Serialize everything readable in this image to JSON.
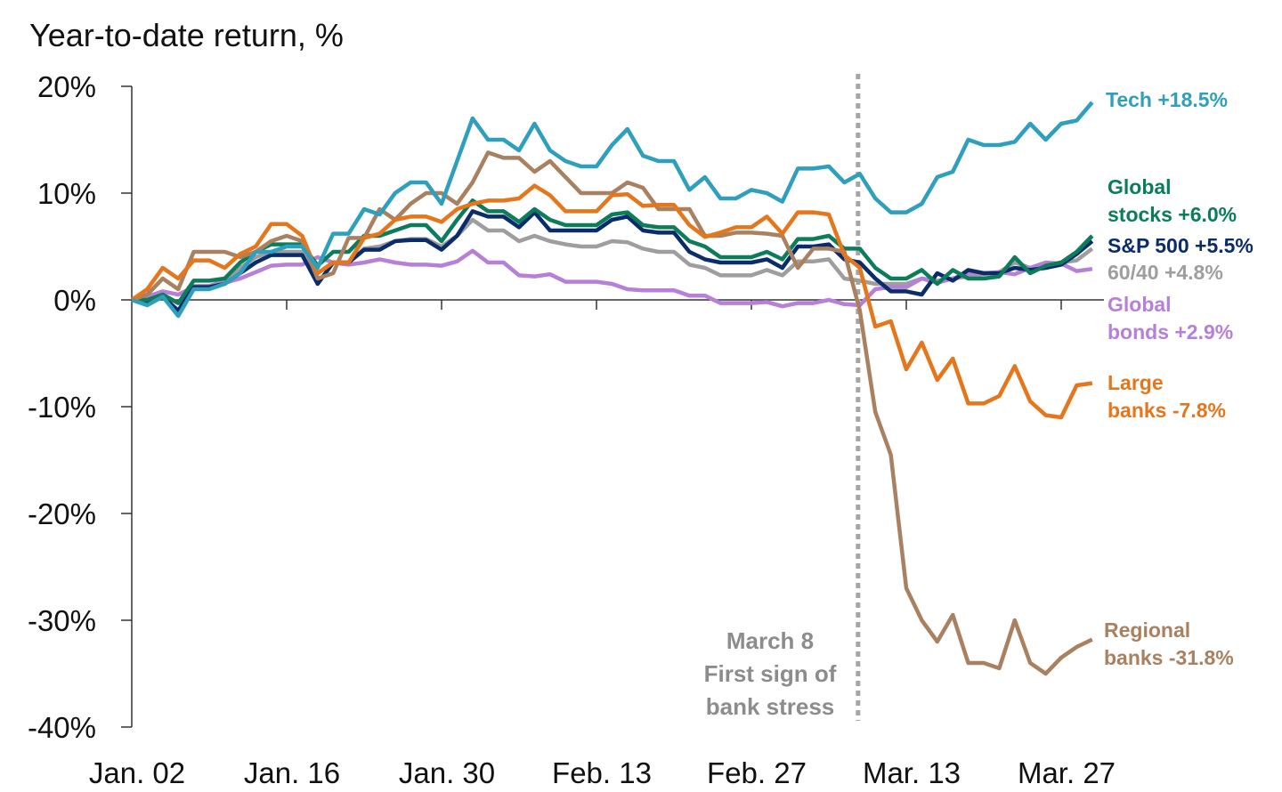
{
  "chart_data": {
    "type": "line",
    "title": "Year-to-date return, %",
    "xlabel": "",
    "ylabel": "",
    "ylim": [
      -40,
      20
    ],
    "y_ticks": [
      20,
      10,
      0,
      -10,
      -20,
      -30,
      -40
    ],
    "y_tick_labels": [
      "20%",
      "10%",
      "0%",
      "-10%",
      "-20%",
      "-30%",
      "-40%"
    ],
    "x_tick_labels": [
      "Jan. 02",
      "Jan. 16",
      "Jan. 30",
      "Feb. 13",
      "Feb. 27",
      "Mar. 13",
      "Mar. 27"
    ],
    "x_tick_dates": [
      "01-02",
      "01-16",
      "01-30",
      "02-13",
      "02-27",
      "03-13",
      "03-27"
    ],
    "grid": false,
    "legend": "direct labels at right end of lines",
    "x": [
      "01-02",
      "01-03",
      "01-04",
      "01-05",
      "01-06",
      "01-09",
      "01-10",
      "01-11",
      "01-12",
      "01-13",
      "01-16",
      "01-17",
      "01-18",
      "01-19",
      "01-20",
      "01-23",
      "01-24",
      "01-25",
      "01-26",
      "01-27",
      "01-30",
      "01-31",
      "02-01",
      "02-02",
      "02-03",
      "02-06",
      "02-07",
      "02-08",
      "02-09",
      "02-10",
      "02-13",
      "02-14",
      "02-15",
      "02-16",
      "02-17",
      "02-20",
      "02-21",
      "02-22",
      "02-23",
      "02-24",
      "02-27",
      "02-28",
      "03-01",
      "03-02",
      "03-03",
      "03-06",
      "03-07",
      "03-08",
      "03-09",
      "03-10",
      "03-13",
      "03-14",
      "03-15",
      "03-16",
      "03-17",
      "03-20",
      "03-21",
      "03-22",
      "03-23",
      "03-24",
      "03-27",
      "03-28",
      "03-29"
    ],
    "annotation": {
      "date": "03-08",
      "lines": [
        "March 8",
        "First sign of",
        "bank stress"
      ],
      "color": "#8c8c8c"
    },
    "series": [
      {
        "name": "60/40",
        "label": [
          "60/40 +4.8%"
        ],
        "color": "#9e9e9e",
        "values": [
          0,
          0,
          0.4,
          -0.3,
          1.3,
          1.3,
          1.8,
          3,
          4,
          4.5,
          4.5,
          4.5,
          2.5,
          3.5,
          3.5,
          4.8,
          5,
          5.5,
          5.7,
          5.7,
          5,
          6,
          7.5,
          6.5,
          6.5,
          5.5,
          6,
          5.5,
          5.2,
          5,
          5,
          5.5,
          5.4,
          4.8,
          4.5,
          4.5,
          3.3,
          3,
          2.3,
          2.3,
          2.3,
          2.8,
          2.3,
          3.6,
          3.6,
          3.8,
          2,
          1.8,
          1.5,
          1.5,
          1.5,
          2,
          1.8,
          2,
          2.2,
          2.4,
          2.6,
          3.5,
          3,
          3.2,
          3.5,
          3.7,
          4.8
        ]
      },
      {
        "name": "Global bonds",
        "label": [
          "Global",
          "bonds +2.9%"
        ],
        "color": "#b67fd8",
        "values": [
          0,
          0.3,
          0.8,
          0.5,
          1.2,
          1.3,
          1.6,
          2,
          2.6,
          3.2,
          3.3,
          3.3,
          4,
          3.5,
          3.3,
          3.5,
          3.8,
          3.5,
          3.3,
          3.3,
          3.2,
          3.6,
          4.6,
          3.5,
          3.5,
          2.3,
          2.2,
          2.4,
          1.7,
          1.7,
          1.7,
          1.5,
          1,
          0.9,
          0.9,
          0.9,
          0.4,
          0.4,
          -0.3,
          -0.3,
          -0.3,
          -0.2,
          -0.6,
          -0.3,
          -0.3,
          0,
          -0.4,
          -0.5,
          1,
          1.2,
          1.2,
          2,
          1.6,
          2,
          2.5,
          2.5,
          2.6,
          2.4,
          3,
          3.5,
          3.4,
          2.7,
          2.9
        ]
      },
      {
        "name": "S&P 500",
        "label": [
          "S&P 500 +5.5%"
        ],
        "color": "#0b2c6b",
        "values": [
          0,
          -0.3,
          0.3,
          -1,
          1.2,
          1.2,
          1.5,
          2.5,
          3.5,
          4.2,
          4.2,
          4.2,
          1.5,
          3.5,
          3.5,
          4.7,
          4.7,
          5.5,
          5.6,
          5.6,
          4.7,
          6,
          8.3,
          7.8,
          7.8,
          6.8,
          8.2,
          6.5,
          6.5,
          6.5,
          6.5,
          7.5,
          7.8,
          6.5,
          6.3,
          6.3,
          4.5,
          3.8,
          3.5,
          3.5,
          3.5,
          3.8,
          3,
          5,
          5,
          5.2,
          3.8,
          3.5,
          2,
          0.8,
          0.8,
          0.5,
          2.5,
          1.8,
          2.8,
          2.5,
          2.5,
          3,
          2.8,
          3,
          3.3,
          4.3,
          5.5
        ]
      },
      {
        "name": "Global stocks",
        "label": [
          "Global",
          "stocks +6.0%"
        ],
        "color": "#0b7d5a",
        "values": [
          0,
          0,
          0.5,
          -0.3,
          1.8,
          1.8,
          2,
          3.5,
          4.5,
          5.2,
          5.2,
          5.2,
          3.2,
          4.5,
          4.5,
          6,
          6,
          6.5,
          7,
          7,
          5.5,
          7.5,
          9.3,
          8.3,
          8.3,
          7.3,
          8.5,
          7.5,
          7,
          7,
          7,
          8,
          8.2,
          7,
          6.8,
          6.8,
          5.5,
          5,
          4,
          4,
          4,
          4.5,
          3.8,
          5.7,
          5.7,
          6,
          4.8,
          4.8,
          3,
          2,
          2,
          2.8,
          1.5,
          2.8,
          2,
          2,
          2.2,
          4,
          2.5,
          3.2,
          3.5,
          4.5,
          6
        ]
      },
      {
        "name": "Regional banks",
        "label": [
          "Regional",
          "banks -31.8%"
        ],
        "color": "#a98160",
        "values": [
          0,
          0.5,
          2,
          1,
          4.5,
          4.5,
          4.5,
          4,
          4.5,
          5.5,
          6,
          5.5,
          2,
          2.5,
          5.8,
          5.8,
          8.5,
          7.5,
          9,
          10,
          10,
          9,
          11,
          13.8,
          13.3,
          13.3,
          12,
          13,
          11.5,
          10,
          10,
          10,
          11,
          10.5,
          8.5,
          8.5,
          8.5,
          6,
          6,
          6.3,
          6.3,
          6.2,
          6,
          3,
          4.8,
          4.8,
          4.5,
          -1,
          -10.5,
          -14.5,
          -27,
          -30,
          -32,
          -29.5,
          -34,
          -34,
          -34.5,
          -30,
          -34,
          -35,
          -33.5,
          -32.5,
          -31.8
        ]
      },
      {
        "name": "Large banks",
        "label": [
          "Large",
          "banks -7.8%"
        ],
        "color": "#e5761c",
        "values": [
          0,
          1,
          3,
          2,
          3.7,
          3.7,
          3,
          4.3,
          5,
          7.1,
          7.1,
          6,
          2.5,
          3.5,
          3.5,
          5.8,
          6.2,
          7.5,
          7.8,
          7.8,
          7.3,
          8.5,
          9,
          9.3,
          9.3,
          9.5,
          10.7,
          9.8,
          8.3,
          8.3,
          8.3,
          9.8,
          9.9,
          8.8,
          8.9,
          8.9,
          7,
          5.9,
          6.3,
          6.8,
          6.8,
          7.8,
          6.2,
          8.2,
          8.2,
          8,
          4.2,
          3,
          -2.5,
          -2,
          -6.5,
          -4,
          -7.5,
          -5.5,
          -9.7,
          -9.7,
          -9,
          -6.2,
          -9.5,
          -10.8,
          -11,
          -8,
          -7.8
        ]
      },
      {
        "name": "Tech",
        "label": [
          "Tech +18.5%"
        ],
        "color": "#2e9fbc",
        "values": [
          0,
          -0.5,
          0.3,
          -1.5,
          1,
          1,
          1.5,
          2.5,
          4.5,
          4.5,
          5,
          5,
          3,
          6.2,
          6.2,
          8.5,
          8,
          10,
          11,
          11,
          9,
          13,
          17,
          15,
          15,
          14,
          16.5,
          14,
          13,
          12.5,
          12.5,
          14.5,
          16,
          13.5,
          13,
          13,
          10.3,
          11.5,
          9.5,
          9.5,
          10.3,
          10,
          9.2,
          12.3,
          12.3,
          12.5,
          11,
          11.8,
          9.5,
          8.2,
          8.2,
          9,
          11.5,
          12,
          15,
          14.5,
          14.5,
          14.8,
          16.5,
          15,
          16.5,
          16.8,
          18.5
        ]
      }
    ]
  }
}
